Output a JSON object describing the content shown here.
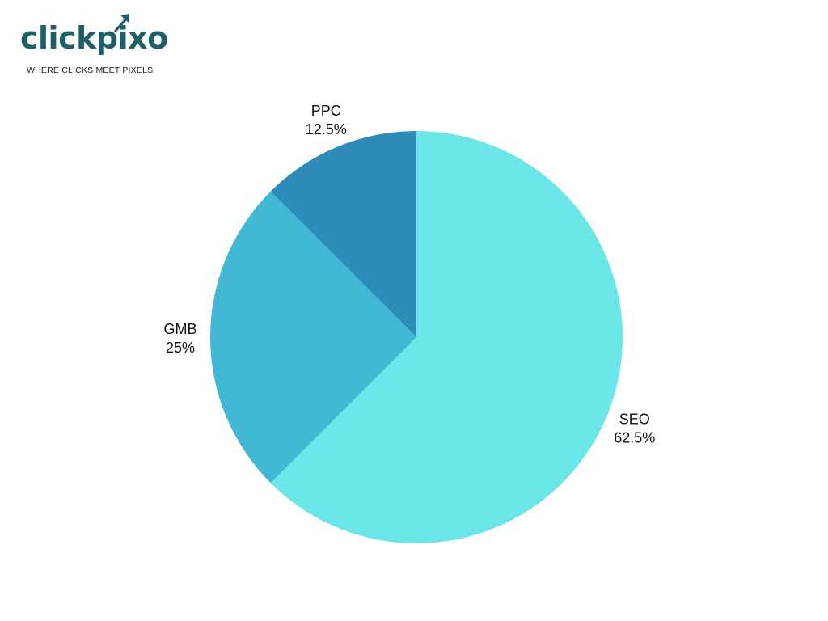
{
  "logo": {
    "brand": "clickpixo",
    "tagline": "WHERE CLICKS MEET PIXELS",
    "brand_color": "#1e5f68",
    "icon": "arrow-up-right-icon"
  },
  "chart_data": {
    "type": "pie",
    "slices": [
      {
        "label": "SEO",
        "value": 62.5,
        "value_label": "62.5%",
        "color": "#6be6e8"
      },
      {
        "label": "GMB",
        "value": 25,
        "value_label": "25%",
        "color": "#43b8d4"
      },
      {
        "label": "PPC",
        "value": 12.5,
        "value_label": "12.5%",
        "color": "#2e8bb8"
      }
    ],
    "start": "12 o'clock",
    "direction": "clockwise",
    "labels": "outside"
  }
}
